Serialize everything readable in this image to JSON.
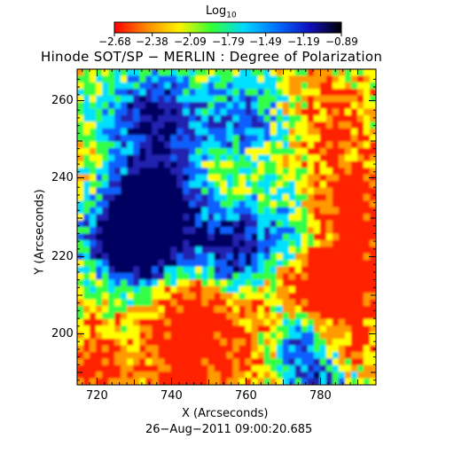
{
  "colorbar": {
    "label_base": "Log",
    "label_sub": "10",
    "ticks": [
      "−2.68",
      "−2.38",
      "−2.09",
      "−1.79",
      "−1.49",
      "−1.19",
      "−0.89"
    ],
    "stops": [
      "#ff0000",
      "#ff8a00",
      "#fff200",
      "#33ff33",
      "#00d8ff",
      "#0070ff",
      "#1010c0",
      "#000000"
    ]
  },
  "title": "Hinode SOT/SP − MERLIN : Degree of Polarization",
  "axes": {
    "x_label": "X (Arcseconds)",
    "y_label": "Y (Arcseconds)",
    "x_ticks": [
      "720",
      "740",
      "760",
      "780"
    ],
    "y_ticks": [
      "200",
      "220",
      "240",
      "260"
    ]
  },
  "timestamp": "26−Aug−2011 09:00:20.685",
  "image": {
    "description_icon": "polarization-map-image",
    "palette": [
      "#ff2200",
      "#ff9a00",
      "#ffff00",
      "#33ff44",
      "#00e0ff",
      "#1060ff",
      "#2020b0",
      "#000060"
    ]
  }
}
